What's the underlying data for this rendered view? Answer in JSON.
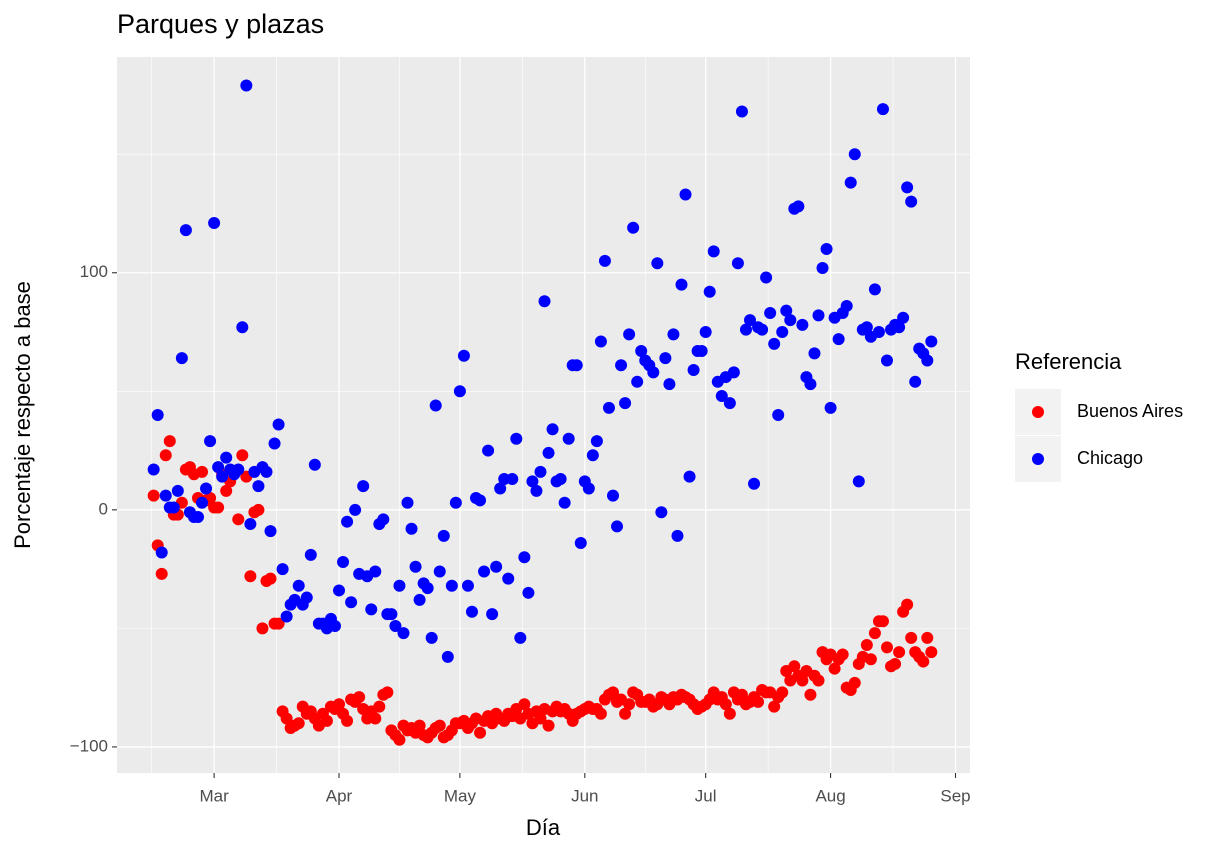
{
  "chart_data": {
    "type": "scatter",
    "title": "Parques y plazas",
    "x_label": "Día",
    "y_label": "Porcentaje respecto a base",
    "legend_title": "Referencia",
    "legend": "right",
    "grid": true,
    "x": [
      46,
      47,
      48,
      49,
      50,
      51,
      52,
      53,
      54,
      55,
      56,
      57,
      58,
      59,
      60,
      61,
      62,
      63,
      64,
      65,
      66,
      67,
      68,
      69,
      70,
      71,
      72,
      73,
      74,
      75,
      76,
      77,
      78,
      79,
      80,
      81,
      82,
      83,
      84,
      85,
      86,
      87,
      88,
      89,
      90,
      91,
      92,
      93,
      94,
      95,
      96,
      97,
      98,
      99,
      100,
      101,
      102,
      103,
      104,
      105,
      106,
      107,
      108,
      109,
      110,
      111,
      112,
      113,
      114,
      115,
      116,
      117,
      118,
      119,
      120,
      121,
      122,
      123,
      124,
      125,
      126,
      127,
      128,
      129,
      130,
      131,
      132,
      133,
      134,
      135,
      136,
      137,
      138,
      139,
      140,
      141,
      142,
      143,
      144,
      145,
      146,
      147,
      148,
      149,
      150,
      151,
      152,
      153,
      154,
      155,
      156,
      157,
      158,
      159,
      160,
      161,
      162,
      163,
      164,
      165,
      166,
      167,
      168,
      169,
      170,
      171,
      172,
      173,
      174,
      175,
      176,
      177,
      178,
      179,
      180,
      181,
      182,
      183,
      184,
      185,
      186,
      187,
      188,
      189,
      190,
      191,
      192,
      193,
      194,
      195,
      196,
      197,
      198,
      199,
      200,
      201,
      202,
      203,
      204,
      205,
      206,
      207,
      208,
      209,
      210,
      211,
      212,
      213,
      214,
      215,
      216,
      217,
      218,
      219,
      220,
      221,
      222,
      223,
      224,
      225,
      226,
      227,
      228,
      229,
      230,
      231,
      232,
      233,
      234,
      235,
      236,
      237,
      238,
      239
    ],
    "series": [
      {
        "name": "Buenos Aires",
        "color": "#ff0000",
        "values": [
          6,
          -15,
          -27,
          23,
          29,
          -2,
          -2,
          3,
          17,
          18,
          15,
          5,
          16,
          4,
          5,
          1,
          1,
          15,
          8,
          12,
          16,
          -4,
          23,
          14,
          -28,
          -1,
          0,
          -50,
          -30,
          -29,
          -48,
          -48,
          -85,
          -88,
          -92,
          -91,
          -90,
          -83,
          -86,
          -85,
          -88,
          -91,
          -86,
          -89,
          -83,
          -84,
          -82,
          -86,
          -89,
          -80,
          -81,
          -79,
          -84,
          -88,
          -85,
          -88,
          -83,
          -78,
          -77,
          -93,
          -95,
          -97,
          -91,
          -93,
          -92,
          -94,
          -91,
          -95,
          -96,
          -94,
          -92,
          -91,
          -96,
          -95,
          -93,
          -90,
          -90,
          -89,
          -92,
          -90,
          -88,
          -94,
          -89,
          -87,
          -90,
          -86,
          -88,
          -89,
          -86,
          -87,
          -84,
          -88,
          -82,
          -86,
          -90,
          -85,
          -88,
          -84,
          -91,
          -85,
          -83,
          -85,
          -84,
          -86,
          -89,
          -86,
          -85,
          -84,
          -83,
          -84,
          -84,
          -86,
          -80,
          -78,
          -77,
          -81,
          -80,
          -86,
          -82,
          -77,
          -78,
          -81,
          -81,
          -80,
          -83,
          -82,
          -79,
          -80,
          -82,
          -79,
          -80,
          -78,
          -79,
          -80,
          -82,
          -84,
          -83,
          -82,
          -80,
          -77,
          -80,
          -79,
          -82,
          -86,
          -77,
          -80,
          -78,
          -82,
          -81,
          -79,
          -81,
          -76,
          -77,
          -77,
          -83,
          -79,
          -77,
          -68,
          -72,
          -66,
          -70,
          -72,
          -68,
          -78,
          -70,
          -72,
          -60,
          -63,
          -61,
          -67,
          -63,
          -61,
          -75,
          -76,
          -73,
          -65,
          -62,
          -57,
          -63,
          -52,
          -47,
          -47,
          -58,
          -66,
          -65,
          -60,
          -43,
          -40,
          -54,
          -60,
          -62,
          -64,
          -54,
          -60
        ]
      },
      {
        "name": "Chicago",
        "color": "#0000ff",
        "values": [
          17,
          40,
          -18,
          6,
          1,
          1,
          8,
          64,
          118,
          -1,
          -3,
          -3,
          3,
          9,
          29,
          121,
          18,
          14,
          22,
          17,
          15,
          17,
          77,
          179,
          -6,
          16,
          10,
          18,
          16,
          -9,
          28,
          36,
          -25,
          -45,
          -40,
          -38,
          -32,
          -40,
          -37,
          -19,
          19,
          -48,
          -48,
          -50,
          -46,
          -49,
          -34,
          -22,
          -5,
          -39,
          0,
          -27,
          10,
          -28,
          -42,
          -26,
          -6,
          -4,
          -44,
          -44,
          -49,
          -32,
          -52,
          3,
          -8,
          -24,
          -38,
          -31,
          -33,
          -54,
          44,
          -26,
          -11,
          -62,
          -32,
          3,
          50,
          65,
          -32,
          -43,
          5,
          4,
          -26,
          25,
          -44,
          -24,
          9,
          13,
          -29,
          13,
          30,
          -54,
          -20,
          -35,
          12,
          8,
          16,
          88,
          24,
          34,
          12,
          13,
          3,
          30,
          61,
          61,
          -14,
          12,
          9,
          23,
          29,
          71,
          105,
          43,
          6,
          -7,
          61,
          45,
          74,
          119,
          54,
          67,
          63,
          61,
          58,
          104,
          -1,
          64,
          53,
          74,
          -11,
          95,
          133,
          14,
          59,
          67,
          67,
          75,
          92,
          109,
          54,
          48,
          56,
          45,
          58,
          104,
          168,
          76,
          80,
          11,
          77,
          76,
          98,
          83,
          70,
          40,
          75,
          84,
          80,
          127,
          128,
          78,
          56,
          53,
          66,
          82,
          102,
          110,
          43,
          81,
          72,
          83,
          86,
          138,
          150,
          12,
          76,
          77,
          73,
          93,
          75,
          169,
          63,
          76,
          78,
          77,
          81,
          136,
          130,
          54,
          68,
          66,
          63,
          71
        ]
      }
    ],
    "xlim": [
      36.9,
      248.6
    ],
    "xticks": [
      {
        "value": 61,
        "label": "Mar"
      },
      {
        "value": 92,
        "label": "Apr"
      },
      {
        "value": 122,
        "label": "May"
      },
      {
        "value": 153,
        "label": "Jun"
      },
      {
        "value": 183,
        "label": "Jul"
      },
      {
        "value": 214,
        "label": "Aug"
      },
      {
        "value": 245,
        "label": "Sep"
      }
    ],
    "ylim": [
      -111,
      191
    ],
    "yticks": [
      {
        "value": -100,
        "label": "−100"
      },
      0,
      100
    ]
  }
}
